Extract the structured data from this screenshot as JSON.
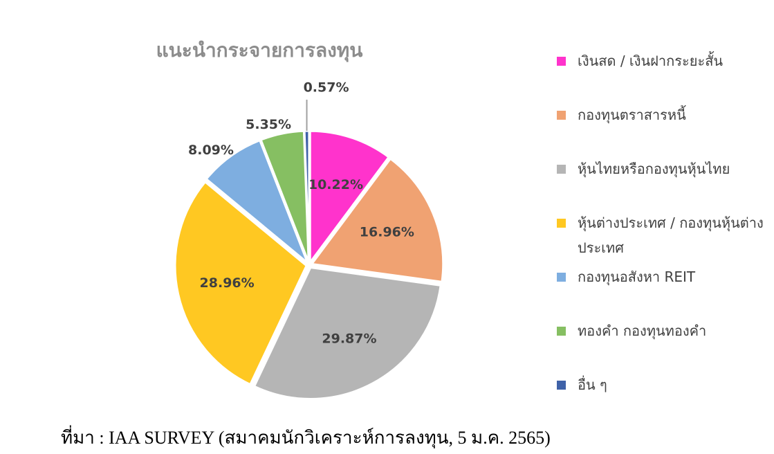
{
  "chart_data": {
    "type": "pie",
    "title": "แนะนำกระจายการลงทุน",
    "categories": [
      "เงินสด / เงินฝากระยะสั้น",
      "กองทุนตราสารหนี้",
      "หุ้นไทยหรือกองทุนหุ้นไทย",
      "หุ้นต่างประเทศ / กองทุนหุ้นต่างประเทศ",
      "กองทุนอสังหา REIT",
      "ทองคำ กองทุนทองคำ",
      "อื่น ๆ"
    ],
    "values": [
      10.22,
      16.96,
      29.87,
      28.96,
      8.09,
      5.35,
      0.57
    ],
    "value_labels": [
      "10.22%",
      "16.96%",
      "29.87%",
      "28.96%",
      "8.09%",
      "5.35%",
      "0.57%"
    ],
    "colors": [
      "#ff33cc",
      "#f0a272",
      "#b5b5b5",
      "#ffc822",
      "#7eaee0",
      "#86bf62",
      "#3f62a8"
    ],
    "legend": "right",
    "source": "ที่มา : IAA SURVEY (สมาคมนักวิเคราะห์การลงทุน, 5 ม.ค. 2565)"
  }
}
